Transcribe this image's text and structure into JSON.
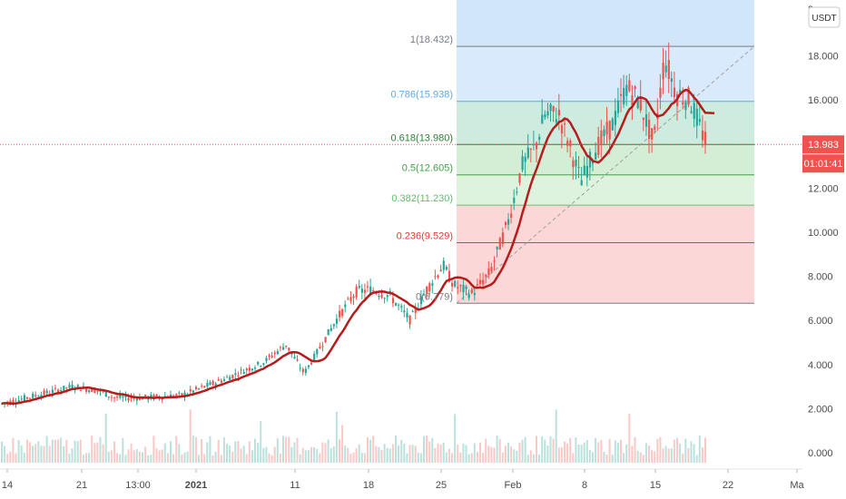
{
  "chart_data": {
    "type": "candlestick",
    "currency": "USDT",
    "y_axis": {
      "min": -0.7,
      "max": 20.3,
      "ticks": [
        "0.000",
        "2.000",
        "4.000",
        "6.000",
        "8.000",
        "10.000",
        "12.000",
        "14.000",
        "16.000",
        "18.000"
      ],
      "tick_values": [
        0,
        2,
        4,
        6,
        8,
        10,
        12,
        14,
        16,
        18
      ],
      "top_partial_label": "2"
    },
    "x_axis": {
      "tick_labels": [
        "14",
        "21",
        "13:00",
        "2021",
        "11",
        "18",
        "25",
        "Feb",
        "8",
        "15",
        "22",
        "Ma"
      ]
    },
    "last_price": {
      "value": 13.983,
      "label": "13.983",
      "color": "#ef5350"
    },
    "countdown": {
      "label": "01:01:41",
      "color": "#ef5350"
    },
    "fibonacci": {
      "levels": [
        {
          "ratio": 1,
          "value": 18.432,
          "label": "1(18.432)",
          "color": "#787b86",
          "fill": "#e3e4e8"
        },
        {
          "ratio": 0.786,
          "value": 15.938,
          "label": "0.786(15.938)",
          "color": "#5fa8e8",
          "fill": "#d8eafb"
        },
        {
          "ratio": 0.618,
          "value": 13.98,
          "label": "0.618(13.980)",
          "color": "#2e7d32",
          "fill": "#cdebdf"
        },
        {
          "ratio": 0.5,
          "value": 12.605,
          "label": "0.5(12.605)",
          "color": "#43a047",
          "fill": "#d4eed6"
        },
        {
          "ratio": 0.382,
          "value": 11.23,
          "label": "0.382(11.230)",
          "color": "#66bb6a",
          "fill": "#def3de"
        },
        {
          "ratio": 0.236,
          "value": 9.529,
          "label": "0.236(9.529)",
          "color": "#e53935",
          "fill": "#fbd8d7"
        },
        {
          "ratio": 0,
          "value": 6.779,
          "label": "0(6.779)",
          "color": "#787b86",
          "fill": "#fbd8d7"
        }
      ],
      "top_extension_fill": "#d2e6fa"
    },
    "colors": {
      "up": "#26a69a",
      "down": "#ef5350",
      "ma": "#b71c1c",
      "volume_up": "#b9e2dc",
      "volume_down": "#f7c9c7"
    }
  }
}
